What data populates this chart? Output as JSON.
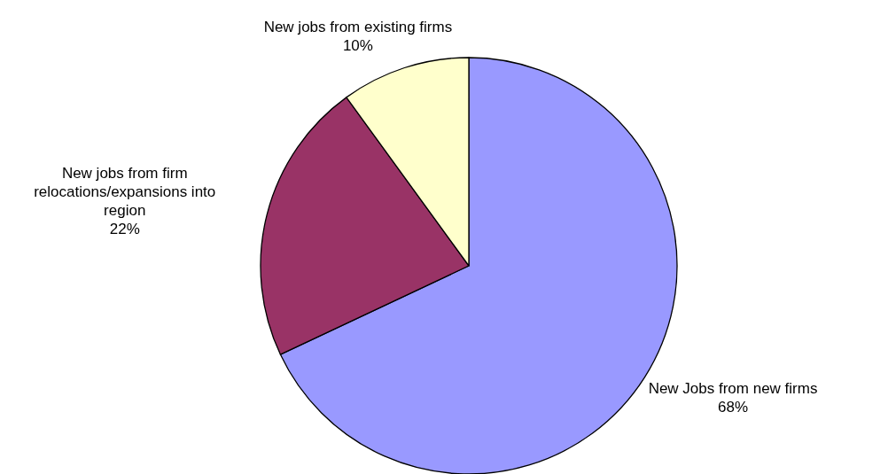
{
  "chart_data": {
    "type": "pie",
    "categories": [
      "New Jobs from new firms",
      "New jobs from firm relocations/expansions into region",
      "New jobs from existing firms"
    ],
    "values": [
      68,
      22,
      10
    ],
    "colors": [
      "#9999ff",
      "#993366",
      "#ffffcc"
    ],
    "value_labels": [
      "68%",
      "22%",
      "10%"
    ]
  }
}
